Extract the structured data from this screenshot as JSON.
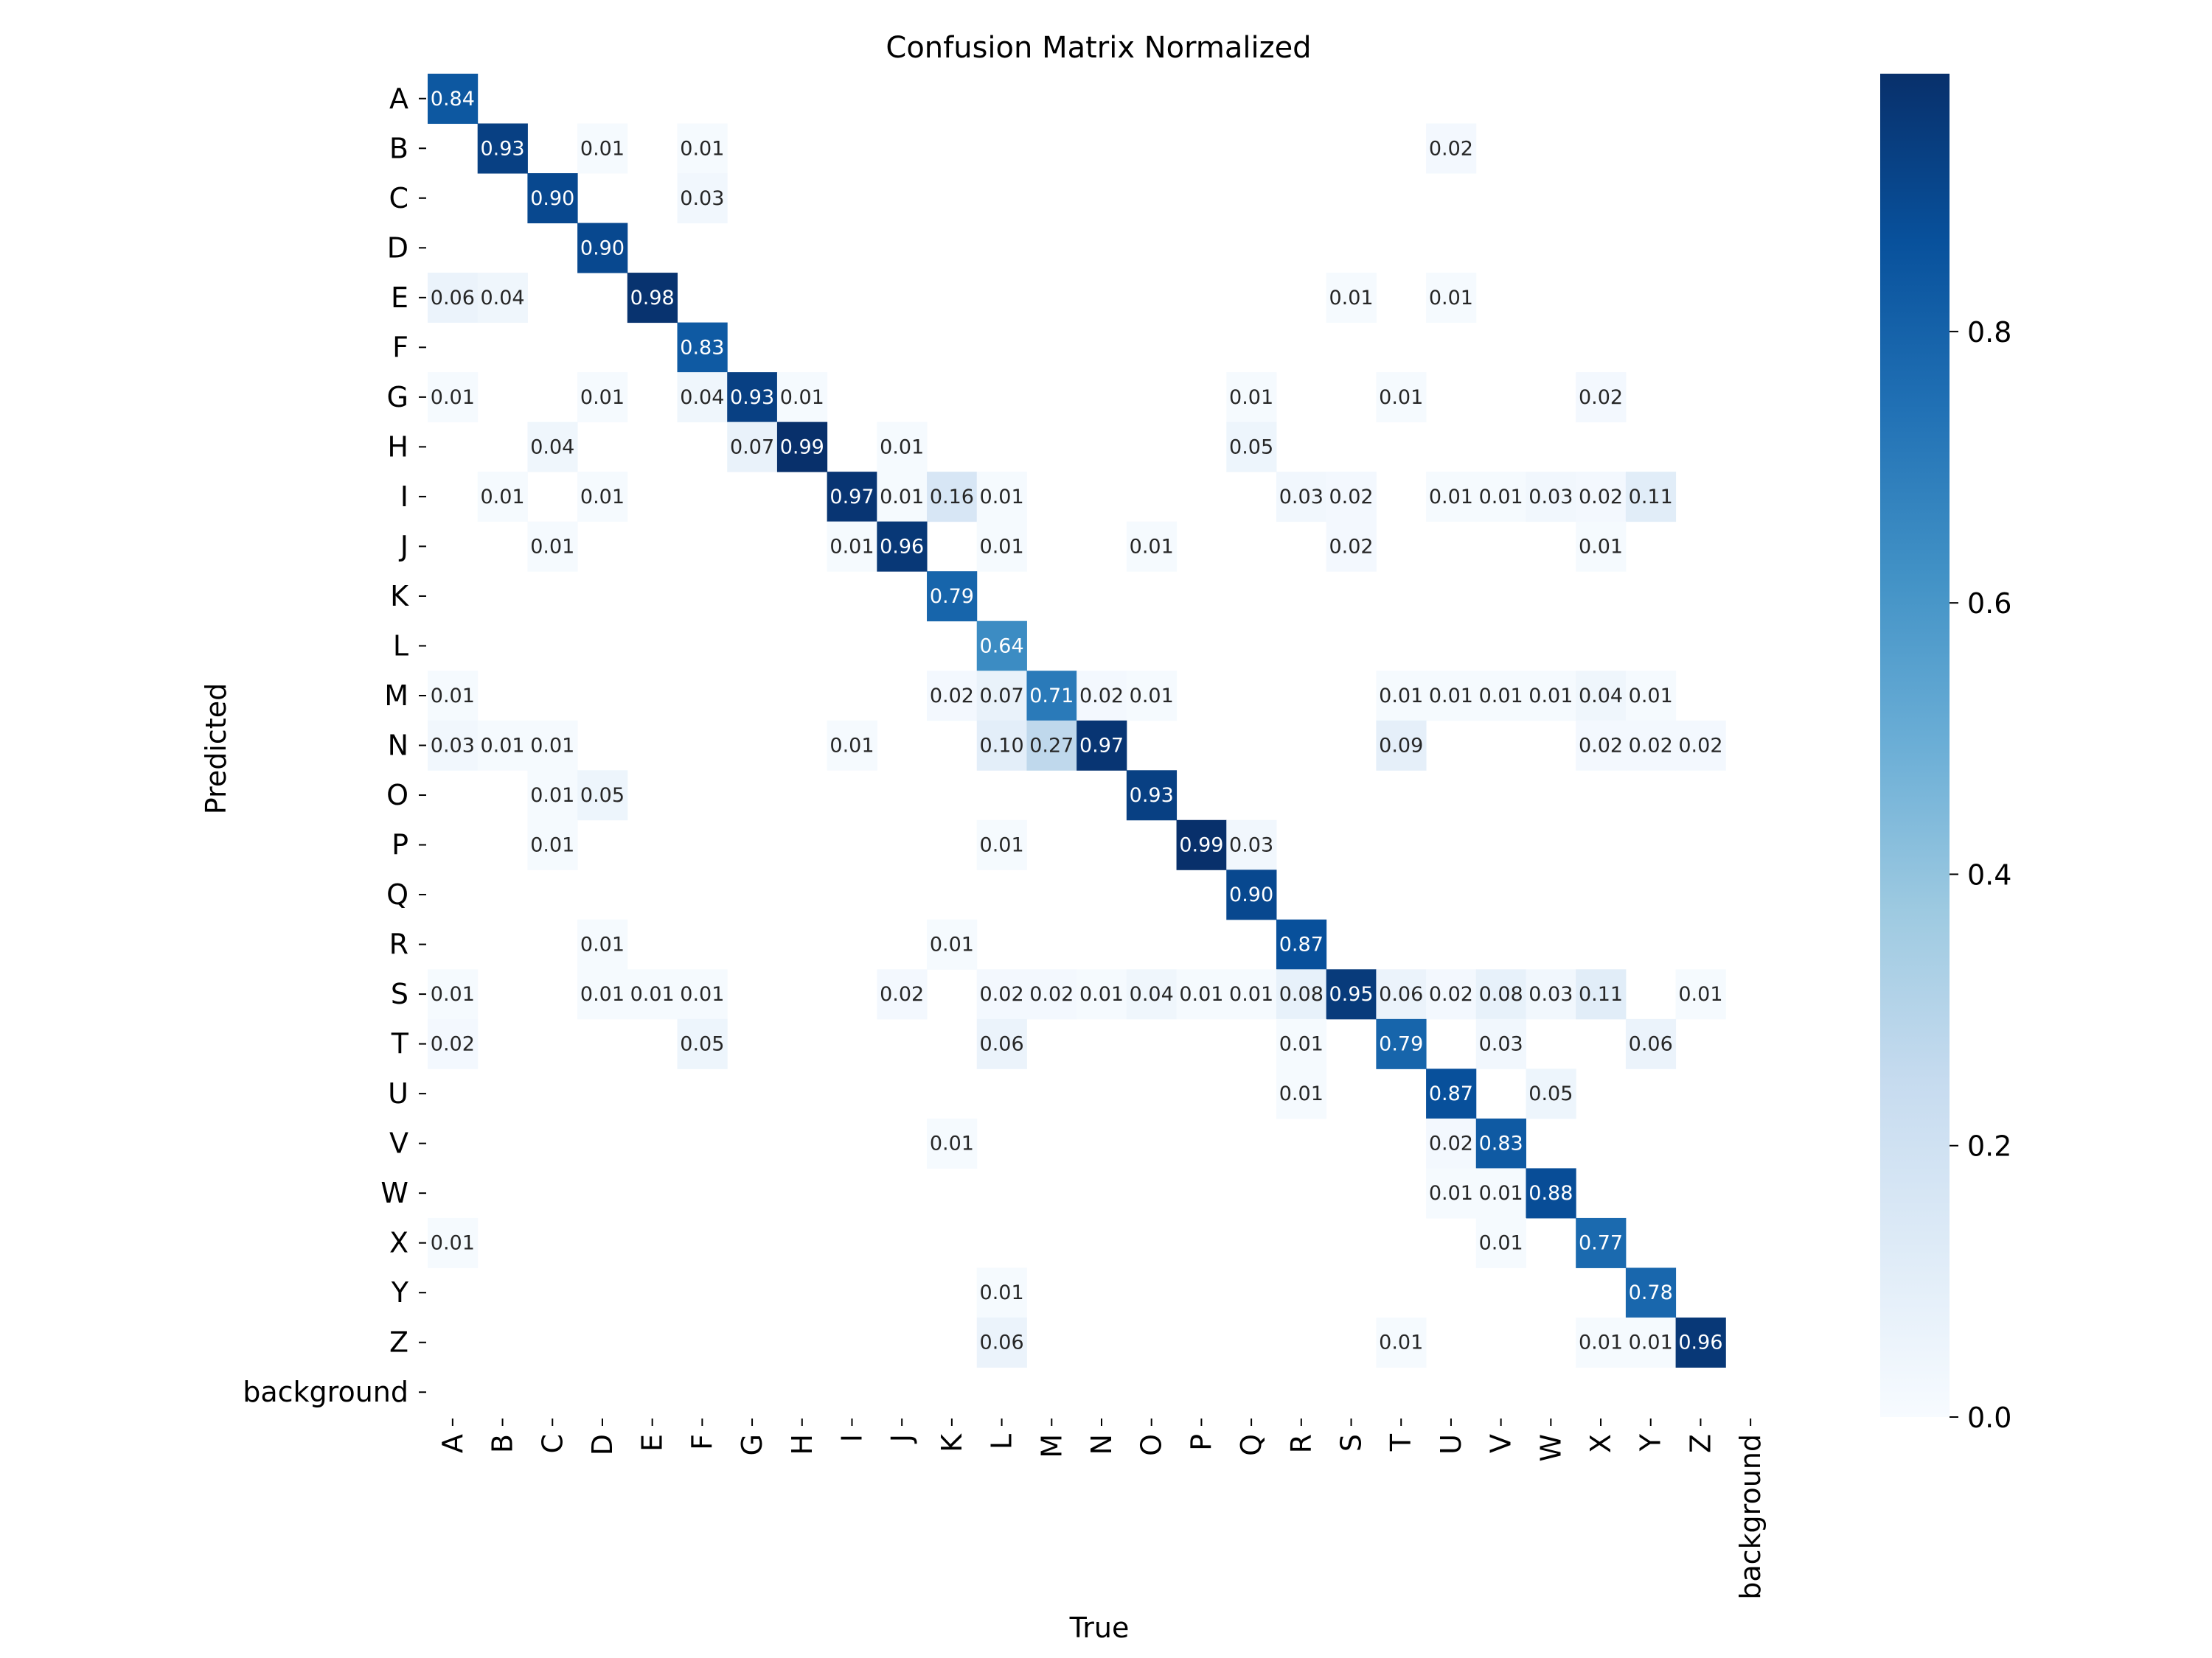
{
  "chart_data": {
    "type": "heatmap",
    "title": "Confusion Matrix Normalized",
    "xlabel": "True",
    "ylabel": "Predicted",
    "x_categories": [
      "A",
      "B",
      "C",
      "D",
      "E",
      "F",
      "G",
      "H",
      "I",
      "J",
      "K",
      "L",
      "M",
      "N",
      "O",
      "P",
      "Q",
      "R",
      "S",
      "T",
      "U",
      "V",
      "W",
      "X",
      "Y",
      "Z",
      "background"
    ],
    "y_categories": [
      "A",
      "B",
      "C",
      "D",
      "E",
      "F",
      "G",
      "H",
      "I",
      "J",
      "K",
      "L",
      "M",
      "N",
      "O",
      "P",
      "Q",
      "R",
      "S",
      "T",
      "U",
      "V",
      "W",
      "X",
      "Y",
      "Z",
      "background"
    ],
    "colorbar": {
      "range": [
        0,
        0.99
      ],
      "ticks": [
        0.0,
        0.2,
        0.4,
        0.6,
        0.8
      ],
      "tick_labels": [
        "0.0",
        "0.2",
        "0.4",
        "0.6",
        "0.8"
      ],
      "colormap": "Blues"
    },
    "grid": false,
    "cells": [
      [
        "A",
        "A",
        0.84
      ],
      [
        "B",
        "B",
        0.93
      ],
      [
        "B",
        "D",
        0.01
      ],
      [
        "B",
        "F",
        0.01
      ],
      [
        "B",
        "U",
        0.02
      ],
      [
        "C",
        "C",
        0.9
      ],
      [
        "C",
        "F",
        0.03
      ],
      [
        "D",
        "D",
        0.9
      ],
      [
        "E",
        "A",
        0.06
      ],
      [
        "E",
        "B",
        0.04
      ],
      [
        "E",
        "E",
        0.98
      ],
      [
        "E",
        "S",
        0.01
      ],
      [
        "E",
        "U",
        0.01
      ],
      [
        "F",
        "F",
        0.83
      ],
      [
        "G",
        "A",
        0.01
      ],
      [
        "G",
        "D",
        0.01
      ],
      [
        "G",
        "F",
        0.04
      ],
      [
        "G",
        "G",
        0.93
      ],
      [
        "G",
        "H",
        0.01
      ],
      [
        "G",
        "Q",
        0.01
      ],
      [
        "G",
        "T",
        0.01
      ],
      [
        "G",
        "X",
        0.02
      ],
      [
        "H",
        "C",
        0.04
      ],
      [
        "H",
        "G",
        0.07
      ],
      [
        "H",
        "H",
        0.99
      ],
      [
        "H",
        "J",
        0.01
      ],
      [
        "H",
        "Q",
        0.05
      ],
      [
        "I",
        "B",
        0.01
      ],
      [
        "I",
        "D",
        0.01
      ],
      [
        "I",
        "I",
        0.97
      ],
      [
        "I",
        "J",
        0.01
      ],
      [
        "I",
        "K",
        0.16
      ],
      [
        "I",
        "L",
        0.01
      ],
      [
        "I",
        "R",
        0.03
      ],
      [
        "I",
        "S",
        0.02
      ],
      [
        "I",
        "U",
        0.01
      ],
      [
        "I",
        "V",
        0.01
      ],
      [
        "I",
        "W",
        0.03
      ],
      [
        "I",
        "X",
        0.02
      ],
      [
        "I",
        "Y",
        0.11
      ],
      [
        "J",
        "C",
        0.01
      ],
      [
        "J",
        "I",
        0.01
      ],
      [
        "J",
        "J",
        0.96
      ],
      [
        "J",
        "L",
        0.01
      ],
      [
        "J",
        "O",
        0.01
      ],
      [
        "J",
        "S",
        0.02
      ],
      [
        "J",
        "X",
        0.01
      ],
      [
        "K",
        "K",
        0.79
      ],
      [
        "L",
        "L",
        0.64
      ],
      [
        "M",
        "A",
        0.01
      ],
      [
        "M",
        "K",
        0.02
      ],
      [
        "M",
        "L",
        0.07
      ],
      [
        "M",
        "M",
        0.71
      ],
      [
        "M",
        "N",
        0.02
      ],
      [
        "M",
        "O",
        0.01
      ],
      [
        "M",
        "T",
        0.01
      ],
      [
        "M",
        "U",
        0.01
      ],
      [
        "M",
        "V",
        0.01
      ],
      [
        "M",
        "W",
        0.01
      ],
      [
        "M",
        "X",
        0.04
      ],
      [
        "M",
        "Y",
        0.01
      ],
      [
        "N",
        "A",
        0.03
      ],
      [
        "N",
        "B",
        0.01
      ],
      [
        "N",
        "C",
        0.01
      ],
      [
        "N",
        "I",
        0.01
      ],
      [
        "N",
        "L",
        0.1
      ],
      [
        "N",
        "M",
        0.27
      ],
      [
        "N",
        "N",
        0.97
      ],
      [
        "N",
        "T",
        0.09
      ],
      [
        "N",
        "X",
        0.02
      ],
      [
        "N",
        "Y",
        0.02
      ],
      [
        "N",
        "Z",
        0.02
      ],
      [
        "O",
        "C",
        0.01
      ],
      [
        "O",
        "D",
        0.05
      ],
      [
        "O",
        "O",
        0.93
      ],
      [
        "P",
        "C",
        0.01
      ],
      [
        "P",
        "L",
        0.01
      ],
      [
        "P",
        "P",
        0.99
      ],
      [
        "P",
        "Q",
        0.03
      ],
      [
        "Q",
        "Q",
        0.9
      ],
      [
        "R",
        "D",
        0.01
      ],
      [
        "R",
        "K",
        0.01
      ],
      [
        "R",
        "R",
        0.87
      ],
      [
        "S",
        "A",
        0.01
      ],
      [
        "S",
        "D",
        0.01
      ],
      [
        "S",
        "E",
        0.01
      ],
      [
        "S",
        "F",
        0.01
      ],
      [
        "S",
        "J",
        0.02
      ],
      [
        "S",
        "L",
        0.02
      ],
      [
        "S",
        "M",
        0.02
      ],
      [
        "S",
        "N",
        0.01
      ],
      [
        "S",
        "O",
        0.04
      ],
      [
        "S",
        "P",
        0.01
      ],
      [
        "S",
        "Q",
        0.01
      ],
      [
        "S",
        "R",
        0.08
      ],
      [
        "S",
        "S",
        0.95
      ],
      [
        "S",
        "T",
        0.06
      ],
      [
        "S",
        "U",
        0.02
      ],
      [
        "S",
        "V",
        0.08
      ],
      [
        "S",
        "W",
        0.03
      ],
      [
        "S",
        "X",
        0.11
      ],
      [
        "S",
        "Z",
        0.01
      ],
      [
        "T",
        "A",
        0.02
      ],
      [
        "T",
        "F",
        0.05
      ],
      [
        "T",
        "L",
        0.06
      ],
      [
        "T",
        "R",
        0.01
      ],
      [
        "T",
        "T",
        0.79
      ],
      [
        "T",
        "V",
        0.03
      ],
      [
        "T",
        "Y",
        0.06
      ],
      [
        "U",
        "R",
        0.01
      ],
      [
        "U",
        "U",
        0.87
      ],
      [
        "U",
        "W",
        0.05
      ],
      [
        "V",
        "K",
        0.01
      ],
      [
        "V",
        "U",
        0.02
      ],
      [
        "V",
        "V",
        0.83
      ],
      [
        "W",
        "U",
        0.01
      ],
      [
        "W",
        "V",
        0.01
      ],
      [
        "W",
        "W",
        0.88
      ],
      [
        "X",
        "A",
        0.01
      ],
      [
        "X",
        "V",
        0.01
      ],
      [
        "X",
        "X",
        0.77
      ],
      [
        "Y",
        "L",
        0.01
      ],
      [
        "Y",
        "Y",
        0.78
      ],
      [
        "Z",
        "L",
        0.06
      ],
      [
        "Z",
        "T",
        0.01
      ],
      [
        "Z",
        "X",
        0.01
      ],
      [
        "Z",
        "Y",
        0.01
      ],
      [
        "Z",
        "Z",
        0.96
      ]
    ]
  }
}
